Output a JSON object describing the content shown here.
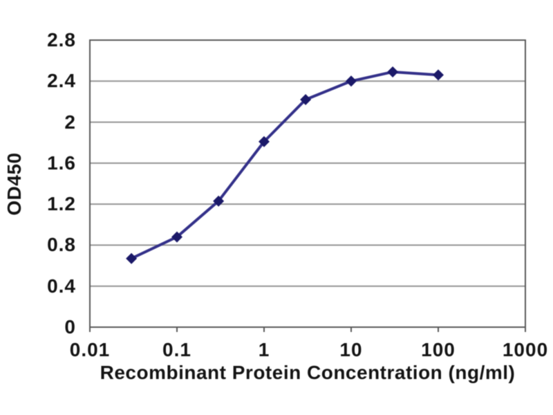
{
  "chart_data": {
    "type": "line",
    "title": "",
    "xlabel": "Recombinant Protein Concentration (ng/ml)",
    "ylabel": "OD450",
    "x_scale": "log",
    "xlim": [
      0.01,
      1000
    ],
    "ylim": [
      0,
      2.8
    ],
    "x_ticks": [
      0.01,
      0.1,
      1,
      10,
      100,
      1000
    ],
    "x_tick_labels": [
      "0.01",
      "0.1",
      "1",
      "10",
      "100",
      "1000"
    ],
    "y_ticks": [
      0,
      0.4,
      0.8,
      1.2,
      1.6,
      2,
      2.4,
      2.8
    ],
    "y_tick_labels": [
      "0",
      "0.4",
      "0.8",
      "1.2",
      "1.6",
      "2",
      "2.4",
      "2.8"
    ],
    "grid": "horizontal-only",
    "legend": "none",
    "series": [
      {
        "name": "OD450",
        "marker": "diamond",
        "x": [
          0.03,
          0.1,
          0.3,
          1,
          3,
          10,
          30,
          100
        ],
        "y": [
          0.67,
          0.88,
          1.23,
          1.81,
          2.22,
          2.4,
          2.49,
          2.46
        ]
      }
    ],
    "colors": {
      "line": "#34318a",
      "marker": "#1b1968",
      "grid": "#949494",
      "frame": "#595959",
      "text": "#141414",
      "background": "#ffffff"
    }
  }
}
